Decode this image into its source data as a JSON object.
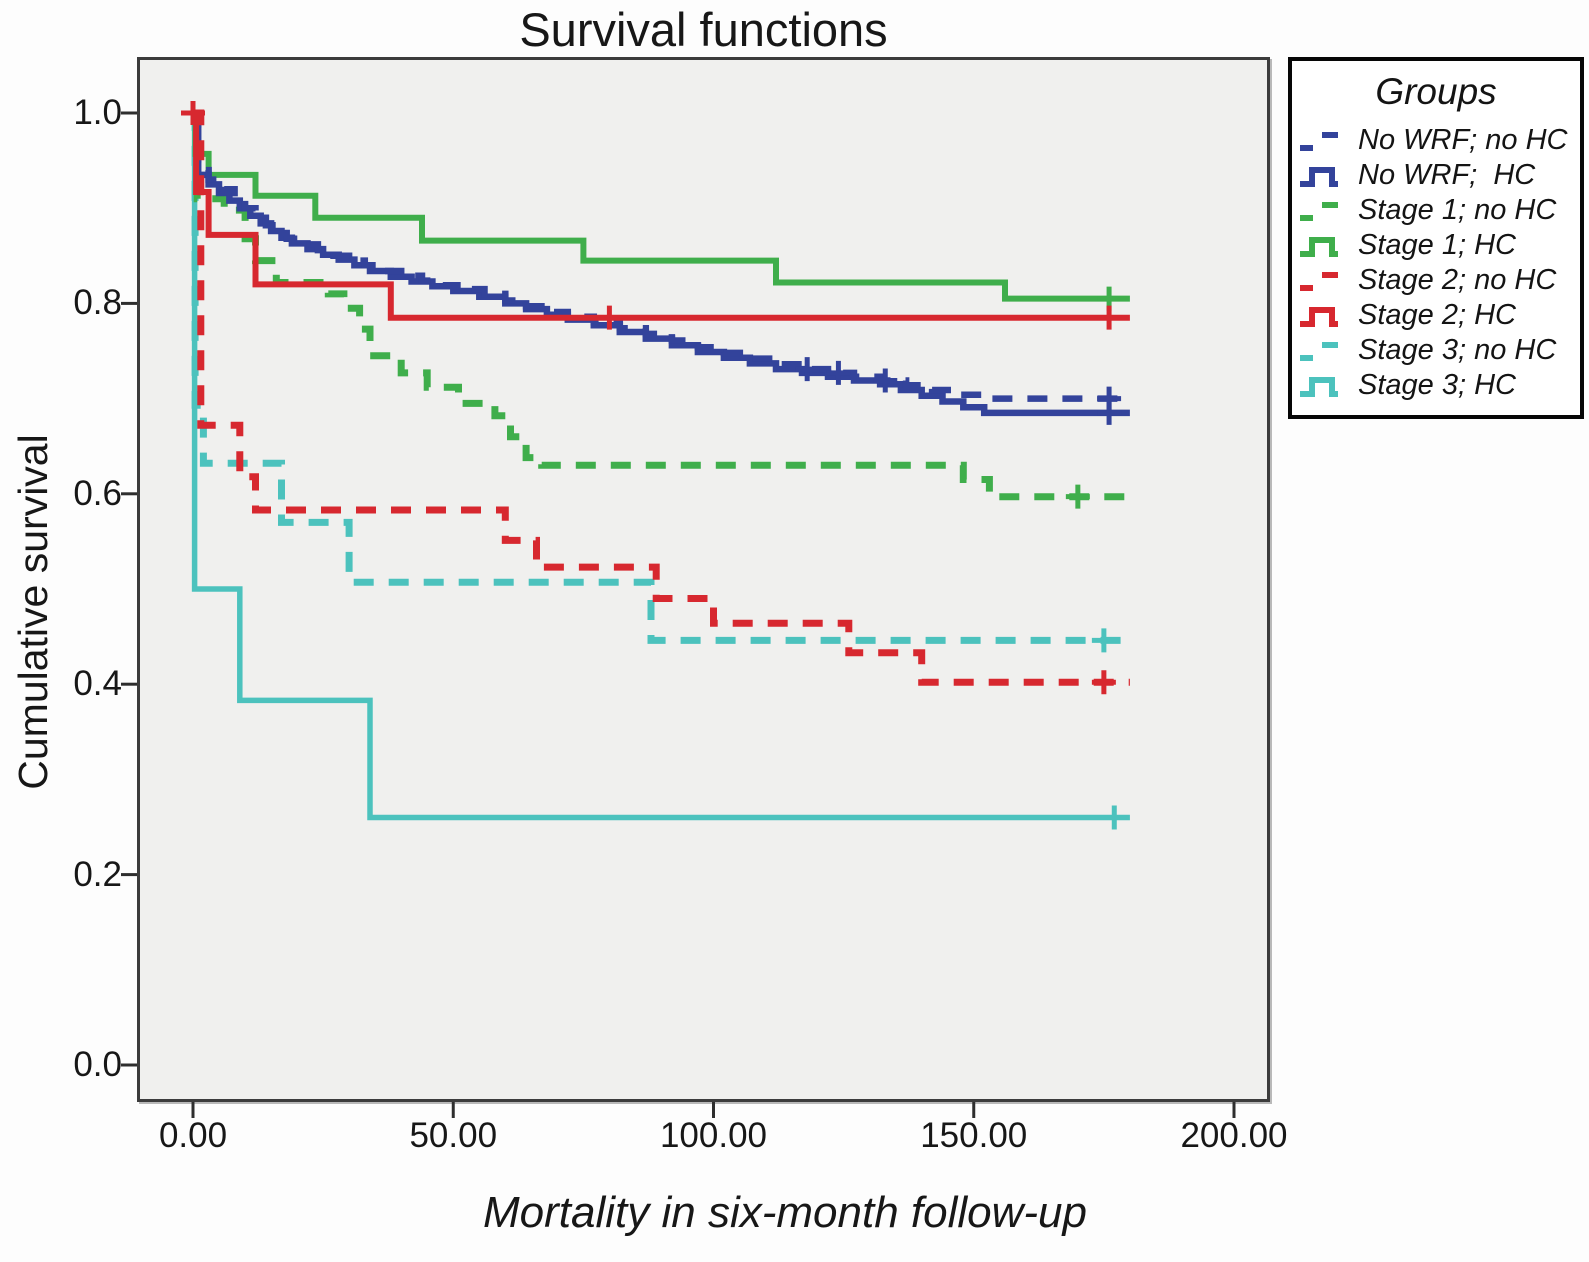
{
  "figure": {
    "title": "Survival functions",
    "x_axis": {
      "label": "Mortality in six-month follow-up",
      "ticks": [
        "0.00",
        "50.00",
        "100.00",
        "150.00",
        "200.00"
      ],
      "tick_values": [
        0,
        50,
        100,
        150,
        200
      ]
    },
    "y_axis": {
      "label": "Cumulative survival",
      "ticks": [
        "1.0",
        "0.8",
        "0.6",
        "0.4",
        "0.2",
        "0.0"
      ],
      "tick_values": [
        1.0,
        0.8,
        0.6,
        0.4,
        0.2,
        0.0
      ]
    },
    "legend": {
      "title": "Groups",
      "entries": [
        {
          "label": "No WRF; no HC",
          "style": "dashed",
          "color": "#33439b"
        },
        {
          "label": "No WRF;  HC",
          "style": "solid",
          "color": "#33439b"
        },
        {
          "label": "Stage 1; no HC",
          "style": "dashed",
          "color": "#3fae4b"
        },
        {
          "label": "Stage 1; HC",
          "style": "solid",
          "color": "#3fae4b"
        },
        {
          "label": "Stage 2; no HC",
          "style": "dashed",
          "color": "#d7282f"
        },
        {
          "label": "Stage 2; HC",
          "style": "solid",
          "color": "#d7282f"
        },
        {
          "label": "Stage 3; no HC",
          "style": "dashed",
          "color": "#4cc2bd"
        },
        {
          "label": "Stage 3; HC",
          "style": "solid",
          "color": "#4cc2bd"
        }
      ]
    },
    "colors": {
      "plot_background": "#f0f0ee",
      "frame": "#3c3c3c",
      "blue": "#33439b",
      "green": "#3fae4b",
      "red": "#d7282f",
      "teal": "#4cc2bd"
    }
  },
  "chart_data": {
    "type": "line",
    "subtype": "kaplan-meier-step",
    "title": "Survival functions",
    "xlabel": "Mortality in six-month follow-up",
    "ylabel": "Cumulative survival",
    "xlim": [
      -11,
      207
    ],
    "ylim": [
      -0.04,
      1.06
    ],
    "x_ticks": [
      0,
      50,
      100,
      150,
      200
    ],
    "y_ticks": [
      1.0,
      0.8,
      0.6,
      0.4,
      0.2,
      0.0
    ],
    "grid": false,
    "legend_position": "outside-right-top",
    "series": [
      {
        "name": "Stage 3; HC",
        "color": "#4cc2bd",
        "style": "solid",
        "width": 5.5,
        "points": [
          [
            0,
            1.0
          ],
          [
            0.3,
            0.5
          ],
          [
            9,
            0.383
          ],
          [
            34,
            0.26
          ],
          [
            180,
            0.26
          ]
        ],
        "censors": [
          [
            177,
            0.26
          ]
        ]
      },
      {
        "name": "Stage 3; no HC",
        "color": "#4cc2bd",
        "style": "dashed",
        "width": 7,
        "points": [
          [
            0,
            1.0
          ],
          [
            0.4,
            0.693
          ],
          [
            2,
            0.632
          ],
          [
            17,
            0.57
          ],
          [
            30,
            0.507
          ],
          [
            88,
            0.446
          ],
          [
            180,
            0.446
          ]
        ],
        "censors": [
          [
            175,
            0.446
          ]
        ]
      },
      {
        "name": "Stage 1; no HC",
        "color": "#3fae4b",
        "style": "dashed",
        "width": 7,
        "points": [
          [
            0,
            1.0
          ],
          [
            0.8,
            0.91
          ],
          [
            6,
            0.898
          ],
          [
            10,
            0.868
          ],
          [
            12,
            0.845
          ],
          [
            16,
            0.822
          ],
          [
            26,
            0.81
          ],
          [
            29,
            0.795
          ],
          [
            32,
            0.773
          ],
          [
            34,
            0.745
          ],
          [
            40,
            0.727
          ],
          [
            45,
            0.712
          ],
          [
            51,
            0.695
          ],
          [
            58,
            0.682
          ],
          [
            61,
            0.66
          ],
          [
            64,
            0.638
          ],
          [
            67,
            0.63
          ],
          [
            148,
            0.615
          ],
          [
            153,
            0.597
          ],
          [
            180,
            0.597
          ]
        ],
        "censors": [
          [
            170,
            0.597
          ]
        ]
      },
      {
        "name": "Stage 1; HC",
        "color": "#3fae4b",
        "style": "solid",
        "width": 6,
        "points": [
          [
            0,
            1.0
          ],
          [
            0.5,
            0.957
          ],
          [
            3,
            0.935
          ],
          [
            12,
            0.913
          ],
          [
            23.5,
            0.89
          ],
          [
            44,
            0.866
          ],
          [
            75,
            0.845
          ],
          [
            112,
            0.822
          ],
          [
            156,
            0.805
          ],
          [
            180,
            0.805
          ]
        ],
        "censors": [
          [
            176,
            0.805
          ]
        ]
      },
      {
        "name": "No WRF; HC",
        "color": "#33439b",
        "style": "solid",
        "width": 6.5,
        "points": [
          [
            0,
            1.0
          ],
          [
            1,
            0.935
          ],
          [
            3,
            0.925
          ],
          [
            5,
            0.916
          ],
          [
            7,
            0.908
          ],
          [
            9,
            0.9
          ],
          [
            11,
            0.892
          ],
          [
            13,
            0.884
          ],
          [
            15,
            0.876
          ],
          [
            17,
            0.869
          ],
          [
            19,
            0.863
          ],
          [
            22,
            0.857
          ],
          [
            25,
            0.851
          ],
          [
            28,
            0.846
          ],
          [
            31,
            0.84
          ],
          [
            34,
            0.834
          ],
          [
            38,
            0.828
          ],
          [
            42,
            0.823
          ],
          [
            46,
            0.818
          ],
          [
            50,
            0.813
          ],
          [
            55,
            0.807
          ],
          [
            60,
            0.8
          ],
          [
            64,
            0.794
          ],
          [
            68,
            0.788
          ],
          [
            72,
            0.783
          ],
          [
            77,
            0.777
          ],
          [
            82,
            0.77
          ],
          [
            87,
            0.763
          ],
          [
            92,
            0.756
          ],
          [
            97,
            0.749
          ],
          [
            102,
            0.743
          ],
          [
            107,
            0.737
          ],
          [
            112,
            0.731
          ],
          [
            117,
            0.727
          ],
          [
            122,
            0.723
          ],
          [
            127,
            0.719
          ],
          [
            132,
            0.715
          ],
          [
            136,
            0.709
          ],
          [
            140,
            0.703
          ],
          [
            144,
            0.697
          ],
          [
            148,
            0.691
          ],
          [
            152,
            0.685
          ],
          [
            180,
            0.685
          ]
        ],
        "censors": [
          [
            176,
            0.685
          ]
        ]
      },
      {
        "name": "No WRF; no HC",
        "color": "#33439b",
        "style": "dashed",
        "width": 6.5,
        "points": [
          [
            0,
            1.0
          ],
          [
            1,
            0.94
          ],
          [
            3,
            0.93
          ],
          [
            6,
            0.92
          ],
          [
            8,
            0.91
          ],
          [
            10,
            0.9
          ],
          [
            12,
            0.89
          ],
          [
            14,
            0.882
          ],
          [
            16,
            0.874
          ],
          [
            18,
            0.868
          ],
          [
            21,
            0.862
          ],
          [
            24,
            0.856
          ],
          [
            27,
            0.85
          ],
          [
            30,
            0.845
          ],
          [
            33,
            0.84
          ],
          [
            36,
            0.834
          ],
          [
            40,
            0.829
          ],
          [
            44,
            0.824
          ],
          [
            48,
            0.819
          ],
          [
            52,
            0.815
          ],
          [
            56,
            0.81
          ],
          [
            60,
            0.803
          ],
          [
            64,
            0.797
          ],
          [
            68,
            0.791
          ],
          [
            72,
            0.786
          ],
          [
            77,
            0.78
          ],
          [
            82,
            0.774
          ],
          [
            87,
            0.768
          ],
          [
            92,
            0.761
          ],
          [
            97,
            0.754
          ],
          [
            102,
            0.748
          ],
          [
            107,
            0.742
          ],
          [
            112,
            0.736
          ],
          [
            117,
            0.731
          ],
          [
            122,
            0.727
          ],
          [
            127,
            0.723
          ],
          [
            132,
            0.719
          ],
          [
            137,
            0.714
          ],
          [
            142,
            0.709
          ],
          [
            147,
            0.704
          ],
          [
            152,
            0.7
          ],
          [
            180,
            0.7
          ]
        ],
        "censors": [
          [
            118,
            0.731
          ],
          [
            124,
            0.727
          ],
          [
            133,
            0.719
          ],
          [
            176,
            0.7
          ]
        ]
      },
      {
        "name": "Stage 2; HC",
        "color": "#d7282f",
        "style": "solid",
        "width": 6,
        "points": [
          [
            0,
            1.0
          ],
          [
            0.6,
            0.917
          ],
          [
            3,
            0.872
          ],
          [
            12,
            0.82
          ],
          [
            38,
            0.785
          ],
          [
            180,
            0.785
          ]
        ],
        "censors": [
          [
            0,
            1.0
          ],
          [
            80,
            0.785
          ],
          [
            176,
            0.785
          ]
        ]
      },
      {
        "name": "Stage 2; no HC",
        "color": "#d7282f",
        "style": "dashed",
        "width": 7,
        "points": [
          [
            0,
            1.0
          ],
          [
            1.5,
            0.672
          ],
          [
            9,
            0.618
          ],
          [
            12,
            0.583
          ],
          [
            60,
            0.551
          ],
          [
            66,
            0.523
          ],
          [
            89,
            0.49
          ],
          [
            100,
            0.464
          ],
          [
            126,
            0.433
          ],
          [
            140,
            0.402
          ],
          [
            180,
            0.402
          ]
        ],
        "censors": [
          [
            175,
            0.402
          ]
        ]
      }
    ]
  }
}
